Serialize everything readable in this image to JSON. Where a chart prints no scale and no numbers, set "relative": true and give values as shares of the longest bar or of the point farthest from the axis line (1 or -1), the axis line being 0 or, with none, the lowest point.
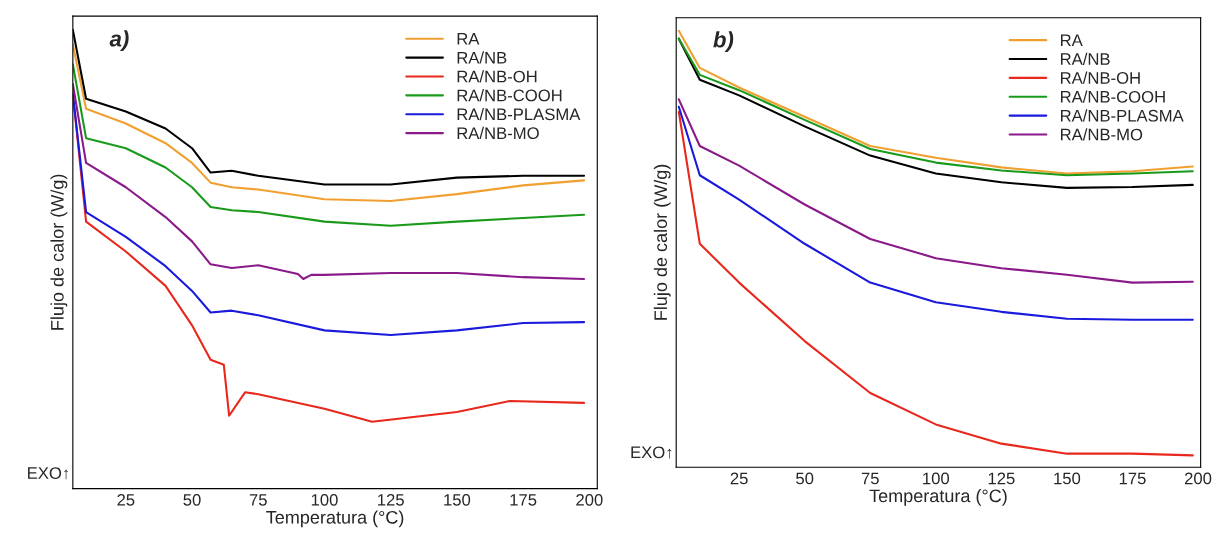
{
  "chart_data": [
    {
      "type": "line",
      "title": "a)",
      "xlabel": "Temperatura (°C)",
      "ylabel": "Flujo de calor (W/g)",
      "relative": true,
      "legend": "top right",
      "grid": false,
      "annotations": [
        "EXO↑"
      ],
      "x": [
        5,
        10,
        25,
        40,
        50,
        57,
        65,
        75,
        100,
        125,
        150,
        175,
        198
      ],
      "xlim": [
        5,
        203
      ],
      "xticks": [
        25,
        50,
        75,
        100,
        125,
        150,
        175,
        200
      ],
      "series": [
        {
          "name": "RA",
          "color": "#f0a030",
          "values": [
            0.968,
            0.828,
            0.796,
            0.753,
            0.71,
            0.667,
            0.657,
            0.652,
            0.631,
            0.627,
            0.642,
            0.661,
            0.672
          ]
        },
        {
          "name": "RA/NB",
          "color": "#000000",
          "values": [
            1.0,
            0.85,
            0.822,
            0.785,
            0.742,
            0.689,
            0.693,
            0.682,
            0.663,
            0.663,
            0.678,
            0.682,
            0.682
          ]
        },
        {
          "name": "RA/NB-OH",
          "color": "#e8281c",
          "x": [
            5,
            10,
            25,
            40,
            50,
            57,
            62,
            64,
            70,
            75,
            100,
            118,
            150,
            170,
            198
          ],
          "values": [
            0.861,
            0.582,
            0.517,
            0.442,
            0.356,
            0.281,
            0.27,
            0.159,
            0.21,
            0.206,
            0.174,
            0.146,
            0.167,
            0.191,
            0.187
          ]
        },
        {
          "name": "RA/NB-COOH",
          "color": "#1a9a1a",
          "values": [
            0.925,
            0.764,
            0.742,
            0.7,
            0.657,
            0.614,
            0.607,
            0.603,
            0.582,
            0.573,
            0.582,
            0.59,
            0.597
          ]
        },
        {
          "name": "RA/NB-PLASMA",
          "color": "#1a1adc",
          "values": [
            0.861,
            0.603,
            0.549,
            0.485,
            0.431,
            0.384,
            0.388,
            0.378,
            0.345,
            0.335,
            0.345,
            0.361,
            0.363
          ]
        },
        {
          "name": "RA/NB-MO",
          "color": "#8a1a8a",
          "x": [
            5,
            10,
            25,
            40,
            50,
            57,
            65,
            75,
            90,
            92,
            95,
            100,
            125,
            150,
            175,
            198
          ],
          "values": [
            0.882,
            0.71,
            0.657,
            0.592,
            0.539,
            0.489,
            0.481,
            0.487,
            0.468,
            0.457,
            0.466,
            0.466,
            0.47,
            0.47,
            0.461,
            0.457
          ]
        }
      ]
    },
    {
      "type": "line",
      "title": "b)",
      "xlabel": "Temperatura (°C)",
      "ylabel": "Flujo de calor (W/g)",
      "relative": true,
      "legend": "top right",
      "grid": false,
      "annotations": [
        "EXO↑"
      ],
      "x": [
        2,
        10,
        25,
        50,
        75,
        100,
        125,
        150,
        175,
        198
      ],
      "xlim": [
        1,
        201
      ],
      "xticks": [
        25,
        50,
        75,
        100,
        125,
        150,
        175,
        200
      ],
      "series": [
        {
          "name": "RA",
          "color": "#f0a030",
          "values": [
            1.0,
            0.915,
            0.87,
            0.803,
            0.736,
            0.709,
            0.687,
            0.673,
            0.678,
            0.689
          ]
        },
        {
          "name": "RA/NB",
          "color": "#000000",
          "values": [
            0.982,
            0.888,
            0.852,
            0.781,
            0.714,
            0.673,
            0.653,
            0.64,
            0.642,
            0.647
          ]
        },
        {
          "name": "RA/NB-OH",
          "color": "#e8281c",
          "values": [
            0.814,
            0.512,
            0.423,
            0.289,
            0.17,
            0.098,
            0.054,
            0.031,
            0.031,
            0.027
          ]
        },
        {
          "name": "RA/NB-COOH",
          "color": "#1a9a1a",
          "values": [
            0.982,
            0.899,
            0.864,
            0.796,
            0.729,
            0.698,
            0.68,
            0.669,
            0.673,
            0.678
          ]
        },
        {
          "name": "RA/NB-PLASMA",
          "color": "#1a1adc",
          "values": [
            0.826,
            0.669,
            0.613,
            0.512,
            0.423,
            0.378,
            0.356,
            0.34,
            0.338,
            0.338
          ]
        },
        {
          "name": "RA/NB-MO",
          "color": "#8a1a8a",
          "values": [
            0.843,
            0.736,
            0.691,
            0.602,
            0.523,
            0.479,
            0.456,
            0.441,
            0.423,
            0.425
          ]
        }
      ]
    }
  ]
}
